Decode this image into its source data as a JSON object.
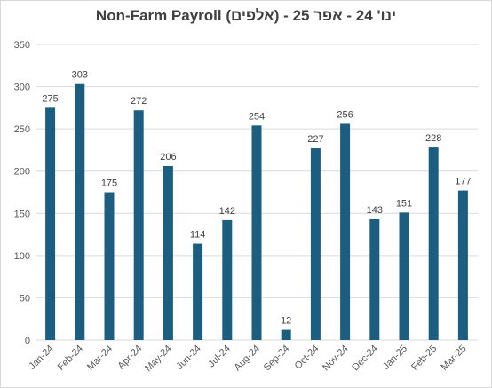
{
  "chart_data": {
    "type": "bar",
    "title": "Non-Farm Payroll (אלפים) - ינו' 24 - אפר 25",
    "categories": [
      "Jan-24",
      "Feb-24",
      "Mar-24",
      "Apr-24",
      "May-24",
      "Jun-24",
      "Jul-24",
      "Aug-24",
      "Sep-24",
      "Oct-24",
      "Nov-24",
      "Dec-24",
      "Jan-25",
      "Feb-25",
      "Mar-25"
    ],
    "values": [
      275,
      303,
      175,
      272,
      206,
      114,
      142,
      254,
      12,
      227,
      256,
      143,
      151,
      228,
      177
    ],
    "ylim": [
      0,
      350
    ],
    "yticks": [
      0,
      50,
      100,
      150,
      200,
      250,
      300,
      350
    ],
    "grid": true,
    "bar_color": "#1b5e80",
    "grid_color": "#d9d9d9"
  }
}
